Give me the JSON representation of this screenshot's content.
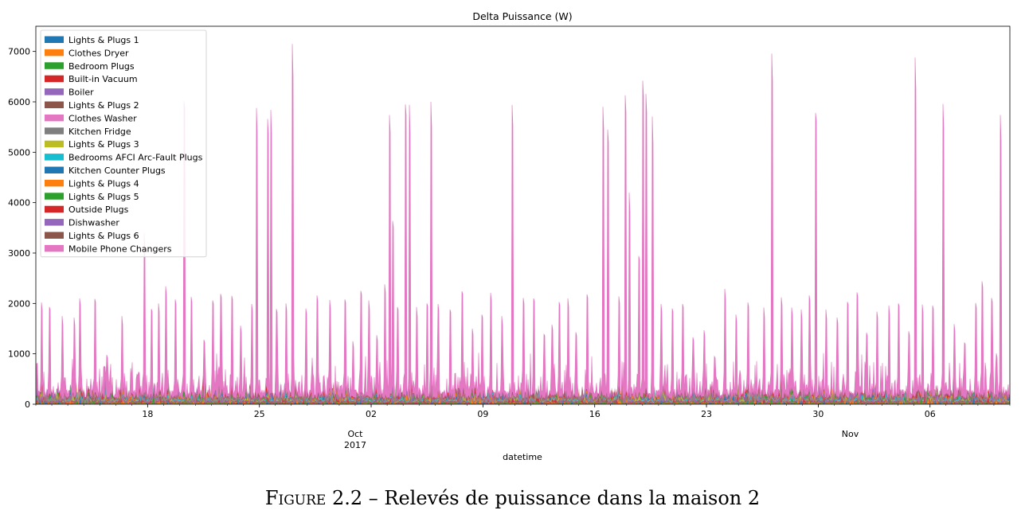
{
  "chart_data": {
    "type": "area",
    "stacked": true,
    "title": "Delta Puissance (W)",
    "xlabel": "datetime",
    "ylabel": "",
    "xlim": [
      "2017-09-11",
      "2017-11-11"
    ],
    "ylim": [
      0,
      7500
    ],
    "yticks": [
      0,
      1000,
      2000,
      3000,
      4000,
      5000,
      6000,
      7000
    ],
    "xticks": [
      {
        "date": "2017-09-18",
        "label": "18"
      },
      {
        "date": "2017-09-25",
        "label": "25"
      },
      {
        "date": "2017-10-02",
        "label": "02"
      },
      {
        "date": "2017-10-09",
        "label": "09"
      },
      {
        "date": "2017-10-16",
        "label": "16"
      },
      {
        "date": "2017-10-23",
        "label": "23"
      },
      {
        "date": "2017-10-30",
        "label": "30"
      },
      {
        "date": "2017-11-06",
        "label": "06"
      }
    ],
    "month_labels": [
      {
        "date": "2017-10-01",
        "label": "Oct",
        "sub": "2017"
      },
      {
        "date": "2017-11-01",
        "label": "Nov",
        "sub": ""
      }
    ],
    "grid": false,
    "legend_position": "top-left",
    "series": [
      {
        "name": "Lights & Plugs 1",
        "color": "#1f77b4"
      },
      {
        "name": "Clothes Dryer",
        "color": "#ff7f0e"
      },
      {
        "name": "Bedroom Plugs",
        "color": "#2ca02c"
      },
      {
        "name": "Built-in Vacuum",
        "color": "#d62728"
      },
      {
        "name": "Boiler",
        "color": "#9467bd"
      },
      {
        "name": "Lights & Plugs 2",
        "color": "#8c564b"
      },
      {
        "name": "Clothes Washer",
        "color": "#e377c2"
      },
      {
        "name": "Kitchen Fridge",
        "color": "#7f7f7f"
      },
      {
        "name": "Lights & Plugs 3",
        "color": "#bcbd22"
      },
      {
        "name": "Bedrooms AFCI Arc-Fault Plugs",
        "color": "#17becf"
      },
      {
        "name": "Kitchen Counter Plugs",
        "color": "#1f77b4"
      },
      {
        "name": "Lights & Plugs 4",
        "color": "#ff7f0e"
      },
      {
        "name": "Lights & Plugs 5",
        "color": "#2ca02c"
      },
      {
        "name": "Outside Plugs",
        "color": "#d62728"
      },
      {
        "name": "Dishwasher",
        "color": "#9467bd"
      },
      {
        "name": "Lights & Plugs 6",
        "color": "#8c564b"
      },
      {
        "name": "Mobile Phone Changers",
        "color": "#e377c2"
      }
    ],
    "total_spikes": [
      {
        "x": "2017-09-11T08:00",
        "y": 2020
      },
      {
        "x": "2017-09-11T20:00",
        "y": 1930
      },
      {
        "x": "2017-09-12T15:00",
        "y": 1750
      },
      {
        "x": "2017-09-13T09:00",
        "y": 1720
      },
      {
        "x": "2017-09-13T18:00",
        "y": 2100
      },
      {
        "x": "2017-09-14T16:00",
        "y": 2090
      },
      {
        "x": "2017-09-15T10:00",
        "y": 980
      },
      {
        "x": "2017-09-16T09:00",
        "y": 1750
      },
      {
        "x": "2017-09-17T10:00",
        "y": 640
      },
      {
        "x": "2017-09-17T19:00",
        "y": 3400
      },
      {
        "x": "2017-09-18T06:00",
        "y": 1890
      },
      {
        "x": "2017-09-18T16:00",
        "y": 2000
      },
      {
        "x": "2017-09-19T03:00",
        "y": 2340
      },
      {
        "x": "2017-09-19T18:00",
        "y": 2080
      },
      {
        "x": "2017-09-20T07:00",
        "y": 6020
      },
      {
        "x": "2017-09-20T18:00",
        "y": 2130
      },
      {
        "x": "2017-09-21T12:00",
        "y": 1280
      },
      {
        "x": "2017-09-22T02:00",
        "y": 2060
      },
      {
        "x": "2017-09-22T14:00",
        "y": 2190
      },
      {
        "x": "2017-09-23T07:00",
        "y": 2150
      },
      {
        "x": "2017-09-23T20:00",
        "y": 1560
      },
      {
        "x": "2017-09-24T12:00",
        "y": 1990
      },
      {
        "x": "2017-09-24T20:00",
        "y": 5880
      },
      {
        "x": "2017-09-25T12:00",
        "y": 5660
      },
      {
        "x": "2017-09-25T17:00",
        "y": 5840
      },
      {
        "x": "2017-09-26T02:00",
        "y": 1890
      },
      {
        "x": "2017-09-26T16:00",
        "y": 2000
      },
      {
        "x": "2017-09-27T01:00",
        "y": 7150
      },
      {
        "x": "2017-09-27T22:00",
        "y": 1900
      },
      {
        "x": "2017-09-28T14:00",
        "y": 2160
      },
      {
        "x": "2017-09-29T10:00",
        "y": 2070
      },
      {
        "x": "2017-09-30T09:00",
        "y": 2080
      },
      {
        "x": "2017-09-30T20:00",
        "y": 1250
      },
      {
        "x": "2017-10-01T08:00",
        "y": 2250
      },
      {
        "x": "2017-10-01T20:00",
        "y": 2060
      },
      {
        "x": "2017-10-02T08:00",
        "y": 1370
      },
      {
        "x": "2017-10-02T20:00",
        "y": 2380
      },
      {
        "x": "2017-10-03T03:00",
        "y": 5740
      },
      {
        "x": "2017-10-03T08:00",
        "y": 3640
      },
      {
        "x": "2017-10-03T16:00",
        "y": 1930
      },
      {
        "x": "2017-10-04T04:00",
        "y": 5950
      },
      {
        "x": "2017-10-04T10:00",
        "y": 5940
      },
      {
        "x": "2017-10-04T20:00",
        "y": 1930
      },
      {
        "x": "2017-10-05T12:00",
        "y": 2000
      },
      {
        "x": "2017-10-05T18:00",
        "y": 6000
      },
      {
        "x": "2017-10-06T04:00",
        "y": 1990
      },
      {
        "x": "2017-10-06T22:00",
        "y": 1880
      },
      {
        "x": "2017-10-07T16:00",
        "y": 2240
      },
      {
        "x": "2017-10-08T08:00",
        "y": 1500
      },
      {
        "x": "2017-10-08T22:00",
        "y": 1780
      },
      {
        "x": "2017-10-09T12:00",
        "y": 2210
      },
      {
        "x": "2017-10-10T04:00",
        "y": 1750
      },
      {
        "x": "2017-10-10T20:00",
        "y": 5940
      },
      {
        "x": "2017-10-11T12:00",
        "y": 2110
      },
      {
        "x": "2017-10-12T04:00",
        "y": 2100
      },
      {
        "x": "2017-10-12T20:00",
        "y": 1390
      },
      {
        "x": "2017-10-13T08:00",
        "y": 1580
      },
      {
        "x": "2017-10-13T18:00",
        "y": 2030
      },
      {
        "x": "2017-10-14T08:00",
        "y": 2100
      },
      {
        "x": "2017-10-14T20:00",
        "y": 1430
      },
      {
        "x": "2017-10-15T12:00",
        "y": 2180
      },
      {
        "x": "2017-10-16T12:00",
        "y": 5900
      },
      {
        "x": "2017-10-16T20:00",
        "y": 5450
      },
      {
        "x": "2017-10-17T12:00",
        "y": 2140
      },
      {
        "x": "2017-10-17T22:00",
        "y": 6130
      },
      {
        "x": "2017-10-18T04:00",
        "y": 4200
      },
      {
        "x": "2017-10-18T18:00",
        "y": 2940
      },
      {
        "x": "2017-10-19T00:00",
        "y": 6420
      },
      {
        "x": "2017-10-19T05:00",
        "y": 6160
      },
      {
        "x": "2017-10-19T14:00",
        "y": 5710
      },
      {
        "x": "2017-10-20T04:00",
        "y": 1990
      },
      {
        "x": "2017-10-20T20:00",
        "y": 1900
      },
      {
        "x": "2017-10-21T12:00",
        "y": 1990
      },
      {
        "x": "2017-10-22T04:00",
        "y": 1330
      },
      {
        "x": "2017-10-22T20:00",
        "y": 1470
      },
      {
        "x": "2017-10-23T12:00",
        "y": 950
      },
      {
        "x": "2017-10-24T04:00",
        "y": 2290
      },
      {
        "x": "2017-10-24T20:00",
        "y": 1780
      },
      {
        "x": "2017-10-25T14:00",
        "y": 2020
      },
      {
        "x": "2017-10-26T14:00",
        "y": 1920
      },
      {
        "x": "2017-10-27T02:00",
        "y": 6960
      },
      {
        "x": "2017-10-27T16:00",
        "y": 2120
      },
      {
        "x": "2017-10-28T08:00",
        "y": 1920
      },
      {
        "x": "2017-10-28T22:00",
        "y": 1880
      },
      {
        "x": "2017-10-29T10:00",
        "y": 2160
      },
      {
        "x": "2017-10-29T20:00",
        "y": 5780
      },
      {
        "x": "2017-10-30T12:00",
        "y": 1880
      },
      {
        "x": "2017-10-31T04:00",
        "y": 1720
      },
      {
        "x": "2017-10-31T20:00",
        "y": 2030
      },
      {
        "x": "2017-11-01T10:00",
        "y": 2220
      },
      {
        "x": "2017-11-02T00:00",
        "y": 1420
      },
      {
        "x": "2017-11-02T16:00",
        "y": 1840
      },
      {
        "x": "2017-11-03T10:00",
        "y": 1960
      },
      {
        "x": "2017-11-04T00:00",
        "y": 2000
      },
      {
        "x": "2017-11-04T16:00",
        "y": 1450
      },
      {
        "x": "2017-11-05T02:00",
        "y": 6880
      },
      {
        "x": "2017-11-05T12:00",
        "y": 1980
      },
      {
        "x": "2017-11-06T04:00",
        "y": 1960
      },
      {
        "x": "2017-11-06T20:00",
        "y": 5960
      },
      {
        "x": "2017-11-07T12:00",
        "y": 1590
      },
      {
        "x": "2017-11-08T04:00",
        "y": 1220
      },
      {
        "x": "2017-11-08T20:00",
        "y": 2010
      },
      {
        "x": "2017-11-09T06:00",
        "y": 2440
      },
      {
        "x": "2017-11-09T20:00",
        "y": 2110
      },
      {
        "x": "2017-11-10T04:00",
        "y": 1010
      },
      {
        "x": "2017-11-10T10:00",
        "y": 5740
      }
    ],
    "spike_note": ""
  },
  "caption": {
    "figure_label": "Figure 2.2",
    "text": " – Relevés de puissance dans la maison 2"
  }
}
